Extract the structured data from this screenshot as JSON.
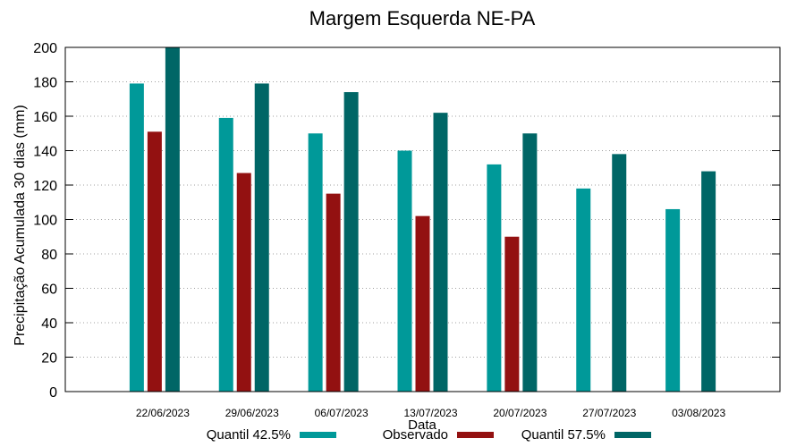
{
  "chart_data": {
    "type": "bar",
    "title": "Margem Esquerda NE-PA",
    "xlabel": "Data",
    "ylabel": "Precipitação Acumulada 30 dias (mm)",
    "ylim": [
      0,
      200
    ],
    "yticks": [
      0,
      20,
      40,
      60,
      80,
      100,
      120,
      140,
      160,
      180,
      200
    ],
    "grid": true,
    "legend": "bottom",
    "categories": [
      "22/06/2023",
      "29/06/2023",
      "06/07/2023",
      "13/07/2023",
      "20/07/2023",
      "27/07/2023",
      "03/08/2023"
    ],
    "series": [
      {
        "name": "Quantil 42.5%",
        "color": "#009999",
        "values": [
          179,
          159,
          150,
          140,
          132,
          118,
          106
        ]
      },
      {
        "name": "Observado",
        "color": "#931111",
        "values": [
          151,
          127,
          115,
          102,
          90,
          null,
          null
        ]
      },
      {
        "name": "Quantil 57.5%",
        "color": "#006666",
        "values": [
          200,
          179,
          174,
          162,
          150,
          138,
          128
        ]
      }
    ]
  }
}
